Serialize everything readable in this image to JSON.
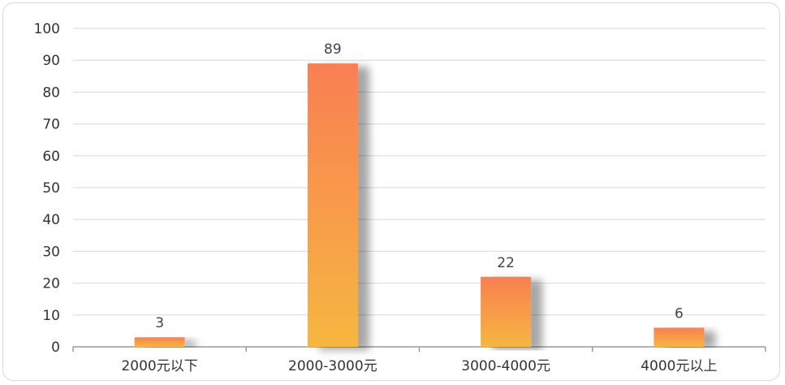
{
  "chart_data": {
    "type": "bar",
    "title": "",
    "xlabel": "",
    "ylabel": "",
    "categories": [
      "2000元以下",
      "2000-3000元",
      "3000-4000元",
      "4000元以上"
    ],
    "values": [
      3,
      89,
      22,
      6
    ],
    "ylim": [
      0,
      100
    ],
    "yticks": [
      0,
      10,
      20,
      30,
      40,
      50,
      60,
      70,
      80,
      90,
      100
    ],
    "grid": true,
    "legend": "none",
    "colors": {
      "bar_top": "#f97f52",
      "bar_bottom": "#f6b740",
      "grid": "#d8d8d8",
      "axis": "#9a9a9a"
    }
  }
}
